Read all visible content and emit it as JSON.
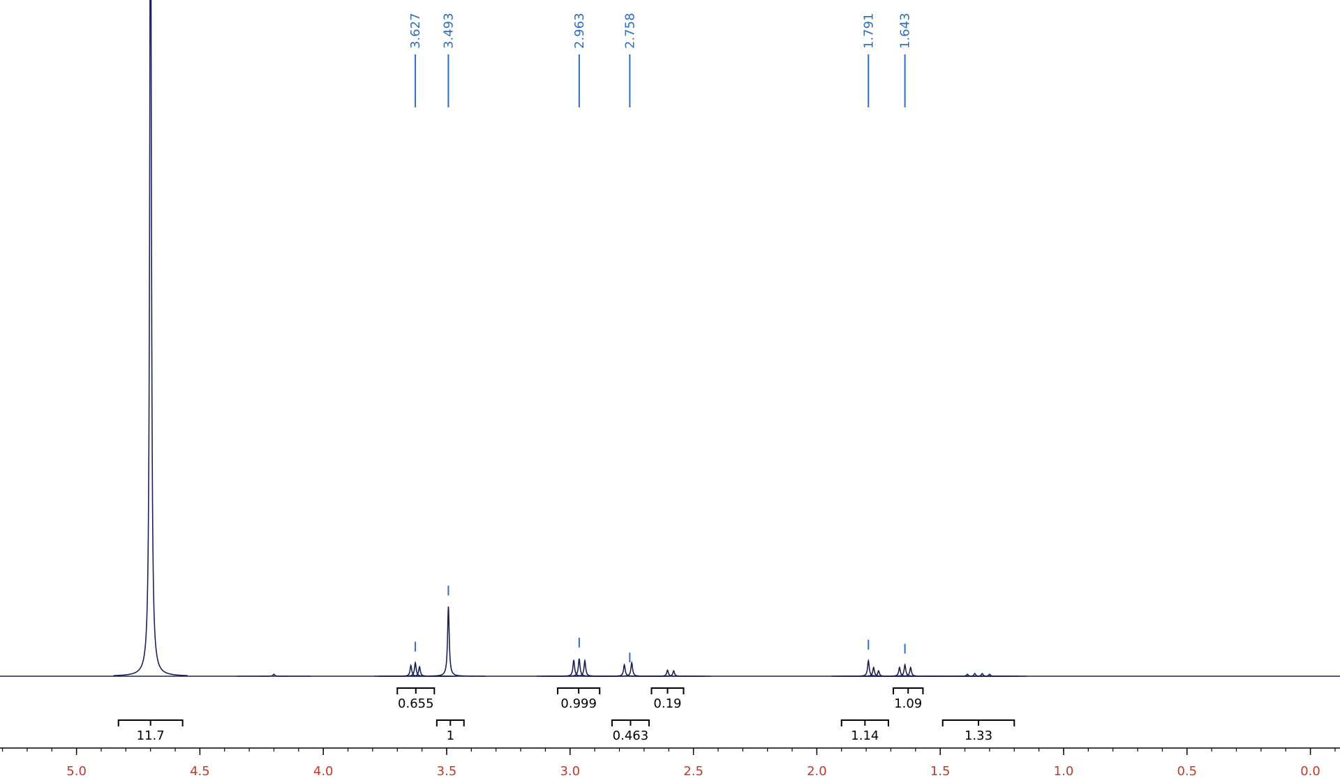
{
  "chart_data": {
    "type": "nmr",
    "xlim": [
      5.31,
      -0.12
    ],
    "ylim": [
      0,
      100
    ],
    "xticks": [
      {
        "value": 5,
        "label": "5.0"
      },
      4.5,
      {
        "value": 4,
        "label": "4.0"
      },
      3.5,
      {
        "value": 3,
        "label": "3.0"
      },
      2.5,
      {
        "value": 2,
        "label": "2.0"
      },
      1.5,
      {
        "value": 1,
        "label": "1.0"
      },
      0.5,
      {
        "value": 0,
        "label": "0.0"
      }
    ],
    "xminorticks": [
      5.3,
      5.2,
      5.1,
      5.0,
      4.9,
      4.8,
      4.7,
      4.6,
      4.5,
      4.4,
      4.3,
      4.2,
      4.1,
      4.0,
      3.9,
      3.8,
      3.7,
      3.6,
      3.5,
      3.4,
      3.3,
      3.2,
      3.1,
      3.0,
      2.9,
      2.8,
      2.7,
      2.6,
      2.5,
      2.4,
      2.3,
      2.2,
      2.1,
      2.0,
      1.9,
      1.8,
      1.7,
      1.6,
      1.5,
      1.4,
      1.3,
      1.2,
      1.1,
      1.0,
      0.9,
      0.8,
      0.7,
      0.6,
      0.5,
      0.4,
      0.3,
      0.2,
      0.1,
      0.0,
      -0.1
    ],
    "color": "#1b2152",
    "label_color": "#2f6dc0",
    "tick_label_color": "#c0392b",
    "peaks": [
      {
        "ppm": 4.7,
        "height": 130
      },
      {
        "ppm": 4.2,
        "height": 0.3
      },
      {
        "ppm": 3.645,
        "height": 1.6
      },
      {
        "ppm": 3.627,
        "height": 2.0
      },
      {
        "ppm": 3.61,
        "height": 1.4
      },
      {
        "ppm": 3.493,
        "height": 10.3
      },
      {
        "ppm": 2.985,
        "height": 2.4
      },
      {
        "ppm": 2.963,
        "height": 2.6
      },
      {
        "ppm": 2.94,
        "height": 2.3
      },
      {
        "ppm": 2.78,
        "height": 1.7
      },
      {
        "ppm": 2.75,
        "height": 2.0
      },
      {
        "ppm": 2.605,
        "height": 0.9
      },
      {
        "ppm": 2.58,
        "height": 0.8
      },
      {
        "ppm": 1.791,
        "height": 2.3
      },
      {
        "ppm": 1.77,
        "height": 1.3
      },
      {
        "ppm": 1.75,
        "height": 0.8
      },
      {
        "ppm": 1.665,
        "height": 1.3
      },
      {
        "ppm": 1.643,
        "height": 1.7
      },
      {
        "ppm": 1.62,
        "height": 1.3
      },
      {
        "ppm": 1.3,
        "height": 0.3
      },
      {
        "ppm": 1.33,
        "height": 0.4
      },
      {
        "ppm": 1.36,
        "height": 0.4
      },
      {
        "ppm": 1.39,
        "height": 0.3
      }
    ],
    "peak_labels": [
      3.627,
      3.493,
      2.963,
      2.758,
      1.791,
      1.643
    ],
    "integrals": [
      {
        "from": 4.83,
        "to": 4.57,
        "value": 11.7
      },
      {
        "from": 3.7,
        "to": 3.55,
        "value": 0.655
      },
      {
        "from": 3.54,
        "to": 3.43,
        "value": 1
      },
      {
        "from": 3.05,
        "to": 2.88,
        "value": 0.999
      },
      {
        "from": 2.83,
        "to": 2.68,
        "value": 0.463
      },
      {
        "from": 2.67,
        "to": 2.54,
        "value": 0.19
      },
      {
        "from": 1.9,
        "to": 1.71,
        "value": 1.14
      },
      {
        "from": 1.69,
        "to": 1.57,
        "value": 1.09
      },
      {
        "from": 1.49,
        "to": 1.2,
        "value": 1.33
      }
    ]
  }
}
